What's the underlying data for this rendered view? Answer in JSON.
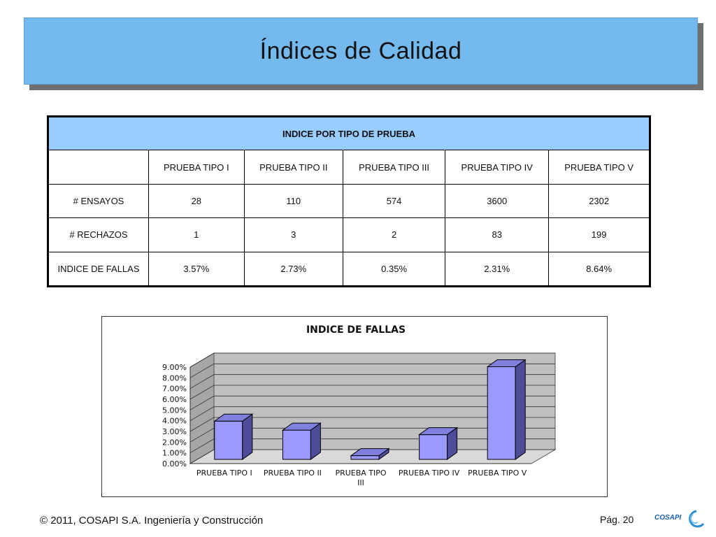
{
  "slide": {
    "title": "Índices de Calidad",
    "footer": "© 2011, COSAPI S.A. Ingeniería y Construcción",
    "page": "Pág. 20",
    "logo_text": "COSAPI"
  },
  "table": {
    "header": "INDICE POR TIPO DE PRUEBA",
    "columns": [
      "",
      "PRUEBA TIPO I",
      "PRUEBA TIPO II",
      "PRUEBA TIPO III",
      "PRUEBA TIPO IV",
      "PRUEBA TIPO V"
    ],
    "rows": [
      {
        "label": "# ENSAYOS",
        "values": [
          "28",
          "110",
          "574",
          "3600",
          "2302"
        ]
      },
      {
        "label": "# RECHAZOS",
        "values": [
          "1",
          "3",
          "2",
          "83",
          "199"
        ]
      },
      {
        "label": "INDICE DE FALLAS",
        "values": [
          "3.57%",
          "2.73%",
          "0.35%",
          "2.31%",
          "8.64%"
        ]
      }
    ]
  },
  "colors": {
    "title_bar": "#74b9ee",
    "table_header": "#99ccff",
    "bar_front": "#9999ff",
    "bar_side": "#4d4d99",
    "bar_top": "#7f7fdd",
    "chart_wall": "#c0c0c0",
    "logo_blue": "#1a5fae"
  },
  "chart_data": {
    "type": "bar",
    "title": "INDICE DE FALLAS",
    "categories": [
      "PRUEBA TIPO I",
      "PRUEBA TIPO II",
      "PRUEBA TIPO III",
      "PRUEBA TIPO IV",
      "PRUEBA TIPO V"
    ],
    "values": [
      3.57,
      2.73,
      0.35,
      2.31,
      8.64
    ],
    "ylim": [
      0,
      9
    ],
    "yticks": [
      "0.00%",
      "1.00%",
      "2.00%",
      "3.00%",
      "4.00%",
      "5.00%",
      "6.00%",
      "7.00%",
      "8.00%",
      "9.00%"
    ],
    "grid": true,
    "style": "3d",
    "legend": "none"
  }
}
